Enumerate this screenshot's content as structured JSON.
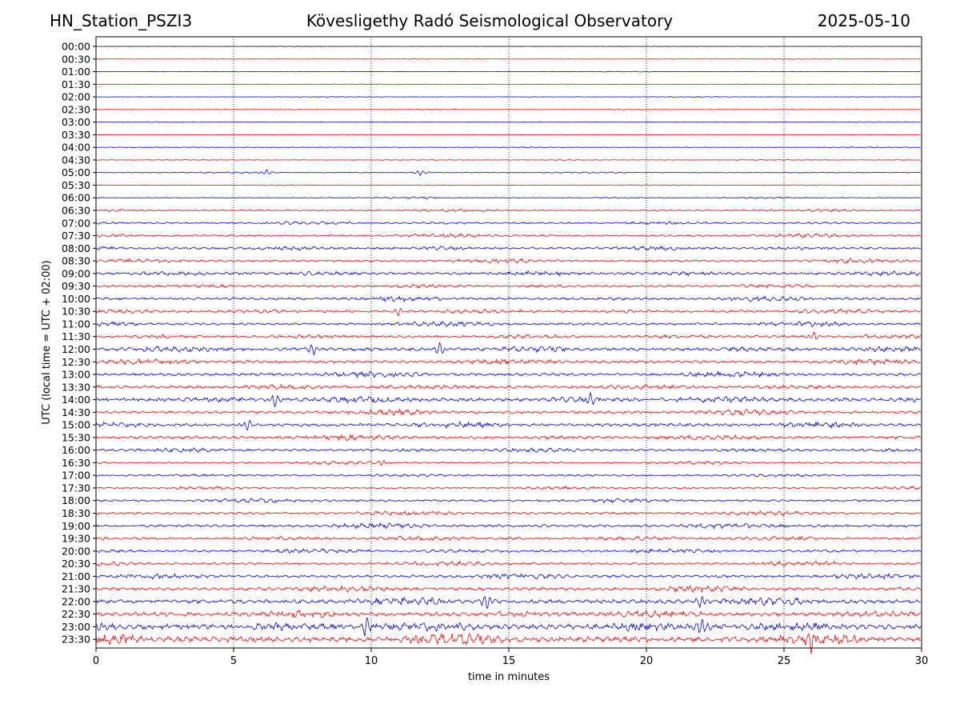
{
  "header": {
    "station": "HN_Station_PSZI3",
    "title": "Kövesligethy Radó Seismological Observatory",
    "date": "2025-05-10"
  },
  "chart_data": {
    "type": "line",
    "title": "Kövesligethy Radó Seismological Observatory",
    "xlabel": "time in minutes",
    "ylabel": "UTC (local time = UTC + 02:00)",
    "xlim": [
      0,
      30
    ],
    "x_ticks": [
      0,
      5,
      10,
      15,
      20,
      25,
      30
    ],
    "vertical_gridlines_at": [
      5,
      10,
      15,
      20,
      25
    ],
    "grid": "vertical dotted",
    "row_labels": [
      "00:00",
      "00:30",
      "01:00",
      "01:30",
      "02:00",
      "02:30",
      "03:00",
      "03:30",
      "04:00",
      "04:30",
      "05:00",
      "05:30",
      "06:00",
      "06:30",
      "07:00",
      "07:30",
      "08:00",
      "08:30",
      "09:00",
      "09:30",
      "10:00",
      "10:30",
      "11:00",
      "11:30",
      "12:00",
      "12:30",
      "13:00",
      "13:30",
      "14:00",
      "14:30",
      "15:00",
      "15:30",
      "16:00",
      "16:30",
      "17:00",
      "17:30",
      "18:00",
      "18:30",
      "19:00",
      "19:30",
      "20:00",
      "20:30",
      "21:00",
      "21:30",
      "22:00",
      "22:30",
      "23:00",
      "23:30"
    ],
    "trace_colors": [
      "#0000ff",
      "#ff0000"
    ],
    "trace_color_first_rows": "#000000",
    "relative_noise_amplitude": [
      0.02,
      0.03,
      0.03,
      0.03,
      0.03,
      0.04,
      0.03,
      0.03,
      0.04,
      0.04,
      0.06,
      0.05,
      0.08,
      0.12,
      0.14,
      0.16,
      0.2,
      0.18,
      0.22,
      0.18,
      0.22,
      0.2,
      0.2,
      0.2,
      0.26,
      0.24,
      0.24,
      0.24,
      0.3,
      0.24,
      0.24,
      0.24,
      0.2,
      0.14,
      0.14,
      0.14,
      0.18,
      0.2,
      0.22,
      0.22,
      0.2,
      0.2,
      0.22,
      0.26,
      0.34,
      0.34,
      0.44,
      0.46
    ],
    "notable_events": [
      {
        "row": "05:00",
        "minute": 6.2
      },
      {
        "row": "05:00",
        "minute": 11.8
      },
      {
        "row": "10:30",
        "minute": 11.0
      },
      {
        "row": "11:30",
        "minute": 26.1
      },
      {
        "row": "12:00",
        "minute": 7.9
      },
      {
        "row": "12:00",
        "minute": 12.5
      },
      {
        "row": "14:00",
        "minute": 6.5
      },
      {
        "row": "14:00",
        "minute": 18.0
      },
      {
        "row": "15:00",
        "minute": 5.5
      },
      {
        "row": "16:30",
        "minute": 10.4
      },
      {
        "row": "22:00",
        "minute": 14.2
      },
      {
        "row": "22:00",
        "minute": 22.0
      },
      {
        "row": "23:00",
        "minute": 9.8
      },
      {
        "row": "23:00",
        "minute": 22.0
      },
      {
        "row": "23:30",
        "minute": 26.0
      }
    ]
  }
}
